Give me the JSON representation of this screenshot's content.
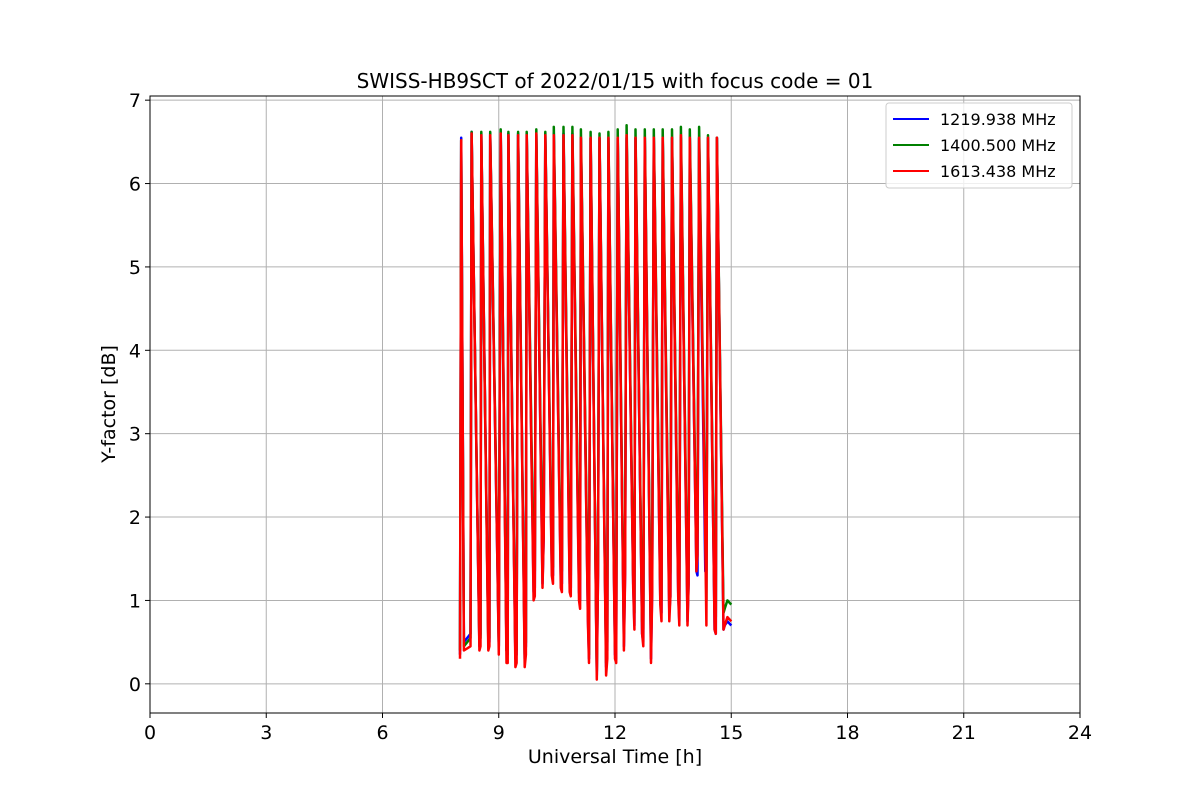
{
  "chart_data": {
    "type": "line",
    "title": "SWISS-HB9SCT of 2022/01/15 with focus code = 01",
    "xlabel": "Universal Time [h]",
    "ylabel": "Y-factor [dB]",
    "xlim": [
      0,
      24
    ],
    "ylim": [
      -0.35,
      7.05
    ],
    "xticks": [
      0,
      3,
      6,
      9,
      12,
      15,
      18,
      21,
      24
    ],
    "yticks": [
      0,
      1,
      2,
      3,
      4,
      5,
      6,
      7
    ],
    "grid": true,
    "legend_position": "top-right",
    "series": [
      {
        "name": "1219.938 MHz",
        "color": "#0000ff",
        "x": [
          8.0,
          8.03,
          8.1,
          8.27,
          8.3,
          8.5,
          8.53,
          8.55,
          8.73,
          8.76,
          8.78,
          8.97,
          9.0,
          9.05,
          9.2,
          9.23,
          9.25,
          9.43,
          9.46,
          9.5,
          9.67,
          9.7,
          9.72,
          9.9,
          9.93,
          9.97,
          10.13,
          10.16,
          10.2,
          10.37,
          10.4,
          10.42,
          10.6,
          10.63,
          10.67,
          10.83,
          10.86,
          10.9,
          11.07,
          11.1,
          11.12,
          11.3,
          11.33,
          11.37,
          11.53,
          11.56,
          11.6,
          11.77,
          11.8,
          11.83,
          12.0,
          12.03,
          12.07,
          12.23,
          12.26,
          12.3,
          12.47,
          12.5,
          12.53,
          12.7,
          12.73,
          12.77,
          12.93,
          12.96,
          13.0,
          13.17,
          13.2,
          13.23,
          13.4,
          13.43,
          13.47,
          13.63,
          13.66,
          13.7,
          13.87,
          13.9,
          13.93,
          14.1,
          14.13,
          14.17,
          14.33,
          14.36,
          14.4,
          14.57,
          14.6,
          14.63,
          14.8,
          14.83,
          14.9,
          15.0
        ],
        "y": [
          0.35,
          6.55,
          0.5,
          0.6,
          6.62,
          0.45,
          0.6,
          6.6,
          0.55,
          0.5,
          6.6,
          1.3,
          0.45,
          6.62,
          0.4,
          0.35,
          6.6,
          0.3,
          0.35,
          6.6,
          0.3,
          0.45,
          6.6,
          1.1,
          1.15,
          6.6,
          1.2,
          1.75,
          6.6,
          1.4,
          1.3,
          6.6,
          1.25,
          1.2,
          6.6,
          1.2,
          1.15,
          6.6,
          1.1,
          1.0,
          6.55,
          0.8,
          0.3,
          6.55,
          0.1,
          1.3,
          6.55,
          0.2,
          0.4,
          6.55,
          0.35,
          0.3,
          6.55,
          0.45,
          1.35,
          6.55,
          1.2,
          0.7,
          6.55,
          0.6,
          0.5,
          6.55,
          0.3,
          1.15,
          6.55,
          1.0,
          0.85,
          6.55,
          0.85,
          1.05,
          6.55,
          1.1,
          0.75,
          6.55,
          0.75,
          1.2,
          6.55,
          1.35,
          1.3,
          6.55,
          1.35,
          1.35,
          6.55,
          0.65,
          0.6,
          6.55,
          0.65,
          0.7,
          0.75,
          0.7
        ]
      },
      {
        "name": "1400.500 MHz",
        "color": "#008000",
        "x": [
          8.0,
          8.03,
          8.1,
          8.27,
          8.3,
          8.5,
          8.53,
          8.55,
          8.73,
          8.76,
          8.78,
          8.97,
          9.0,
          9.05,
          9.2,
          9.23,
          9.25,
          9.43,
          9.46,
          9.5,
          9.67,
          9.7,
          9.72,
          9.9,
          9.93,
          9.97,
          10.13,
          10.16,
          10.2,
          10.37,
          10.4,
          10.42,
          10.6,
          10.63,
          10.67,
          10.83,
          10.86,
          10.9,
          11.07,
          11.1,
          11.12,
          11.3,
          11.33,
          11.37,
          11.53,
          11.56,
          11.6,
          11.77,
          11.8,
          11.83,
          12.0,
          12.03,
          12.07,
          12.23,
          12.26,
          12.3,
          12.47,
          12.5,
          12.53,
          12.7,
          12.73,
          12.77,
          12.93,
          12.96,
          13.0,
          13.17,
          13.2,
          13.23,
          13.4,
          13.43,
          13.47,
          13.63,
          13.66,
          13.7,
          13.87,
          13.9,
          13.93,
          14.1,
          14.13,
          14.17,
          14.33,
          14.36,
          14.4,
          14.57,
          14.6,
          14.63,
          14.8,
          14.83,
          14.9,
          15.0
        ],
        "y": [
          0.4,
          6.52,
          0.45,
          0.55,
          6.62,
          0.5,
          0.55,
          6.62,
          0.5,
          0.55,
          6.62,
          1.45,
          0.45,
          6.65,
          0.4,
          0.4,
          6.62,
          0.35,
          0.4,
          6.62,
          0.35,
          0.5,
          6.62,
          1.3,
          1.35,
          6.65,
          1.4,
          1.85,
          6.62,
          1.5,
          1.4,
          6.68,
          1.4,
          1.35,
          6.68,
          1.35,
          1.3,
          6.68,
          1.3,
          1.25,
          6.65,
          1.0,
          0.35,
          6.62,
          0.15,
          1.5,
          6.6,
          0.25,
          0.5,
          6.62,
          0.45,
          0.4,
          6.65,
          0.6,
          1.55,
          6.7,
          1.3,
          0.85,
          6.65,
          0.75,
          0.65,
          6.65,
          0.45,
          1.35,
          6.65,
          1.2,
          1.0,
          6.65,
          1.05,
          1.35,
          6.65,
          1.3,
          0.9,
          6.68,
          0.95,
          1.5,
          6.65,
          1.6,
          1.85,
          6.68,
          1.9,
          1.0,
          6.58,
          0.85,
          0.8,
          6.55,
          0.85,
          0.9,
          1.0,
          0.95
        ]
      },
      {
        "name": "1613.438 MHz",
        "color": "#ff0000",
        "x": [
          8.0,
          8.03,
          8.1,
          8.27,
          8.3,
          8.5,
          8.53,
          8.55,
          8.73,
          8.76,
          8.78,
          8.97,
          9.0,
          9.05,
          9.2,
          9.23,
          9.25,
          9.43,
          9.46,
          9.5,
          9.67,
          9.7,
          9.72,
          9.9,
          9.93,
          9.97,
          10.13,
          10.16,
          10.2,
          10.37,
          10.4,
          10.42,
          10.6,
          10.63,
          10.67,
          10.83,
          10.86,
          10.9,
          11.07,
          11.1,
          11.12,
          11.3,
          11.33,
          11.37,
          11.53,
          11.56,
          11.6,
          11.77,
          11.8,
          11.83,
          12.0,
          12.03,
          12.07,
          12.23,
          12.26,
          12.3,
          12.47,
          12.5,
          12.53,
          12.7,
          12.73,
          12.77,
          12.93,
          12.96,
          13.0,
          13.17,
          13.2,
          13.23,
          13.4,
          13.43,
          13.47,
          13.63,
          13.66,
          13.7,
          13.87,
          13.9,
          13.93,
          14.1,
          14.13,
          14.17,
          14.33,
          14.36,
          14.4,
          14.57,
          14.6,
          14.63,
          14.8,
          14.83,
          14.9,
          15.0
        ],
        "y": [
          0.3,
          6.52,
          0.4,
          0.45,
          6.6,
          0.4,
          0.45,
          6.58,
          0.4,
          0.45,
          6.58,
          1.3,
          0.35,
          6.6,
          0.25,
          0.25,
          6.58,
          0.2,
          0.25,
          6.58,
          0.2,
          0.35,
          6.58,
          1.0,
          1.05,
          6.6,
          1.15,
          1.75,
          6.58,
          1.3,
          1.2,
          6.58,
          1.15,
          1.1,
          6.58,
          1.1,
          1.05,
          6.58,
          1.0,
          0.9,
          6.55,
          0.75,
          0.25,
          6.55,
          0.05,
          1.3,
          6.55,
          0.1,
          0.3,
          6.55,
          0.3,
          0.25,
          6.55,
          0.4,
          1.3,
          6.58,
          1.15,
          0.65,
          6.55,
          0.6,
          0.45,
          6.55,
          0.25,
          1.1,
          6.55,
          0.95,
          0.75,
          6.55,
          0.75,
          1.05,
          6.55,
          1.05,
          0.7,
          6.58,
          0.7,
          1.2,
          6.55,
          1.35,
          1.55,
          6.55,
          1.7,
          0.7,
          6.55,
          0.65,
          0.6,
          6.55,
          0.65,
          0.7,
          0.8,
          0.75
        ]
      }
    ]
  }
}
